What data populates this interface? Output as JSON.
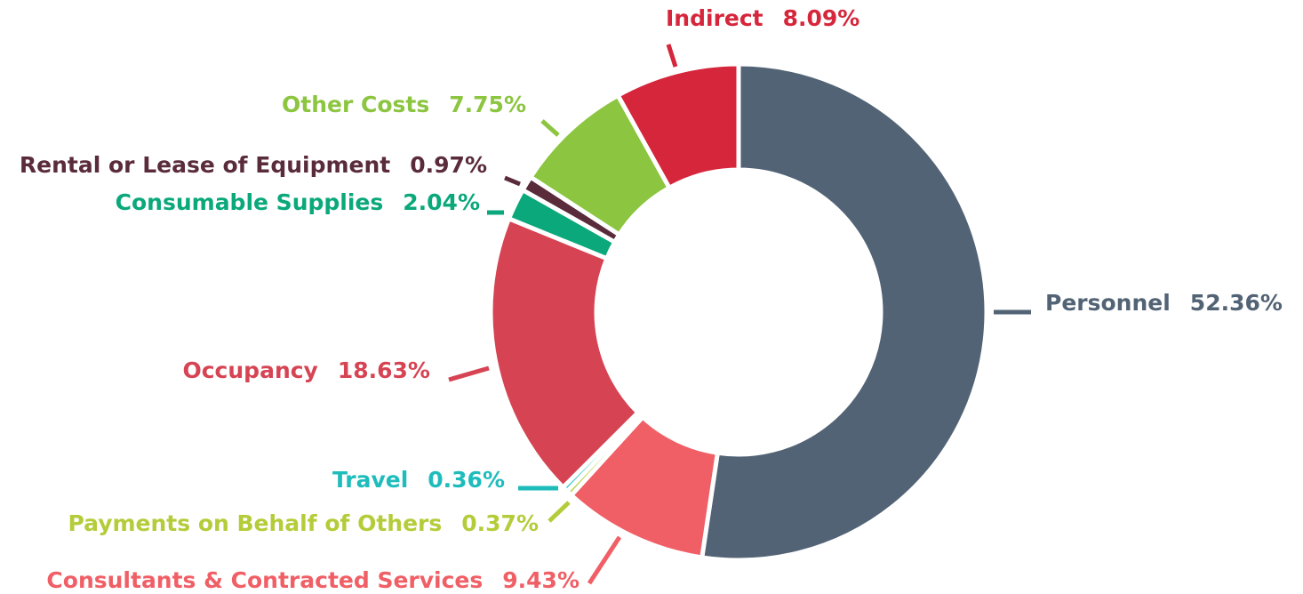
{
  "chart_data": {
    "type": "donut",
    "categories": [
      "Personnel",
      "Consultants & Contracted Services",
      "Payments on Behalf of Others",
      "Travel",
      "Occupancy",
      "Consumable Supplies",
      "Rental or Lease of Equipment",
      "Other Costs",
      "Indirect"
    ],
    "values": [
      52.36,
      9.43,
      0.37,
      0.36,
      18.63,
      2.04,
      0.97,
      7.75,
      8.09
    ],
    "value_labels": [
      "52.36%",
      "9.43%",
      "0.37%",
      "0.36%",
      "18.63%",
      "2.04%",
      "0.97%",
      "7.75%",
      "8.09%"
    ],
    "colors": [
      "#526375",
      "#f05f66",
      "#b5cc3a",
      "#1fbcbc",
      "#d64453",
      "#0aa87a",
      "#5a2b3a",
      "#8cc540",
      "#d6263b"
    ]
  }
}
